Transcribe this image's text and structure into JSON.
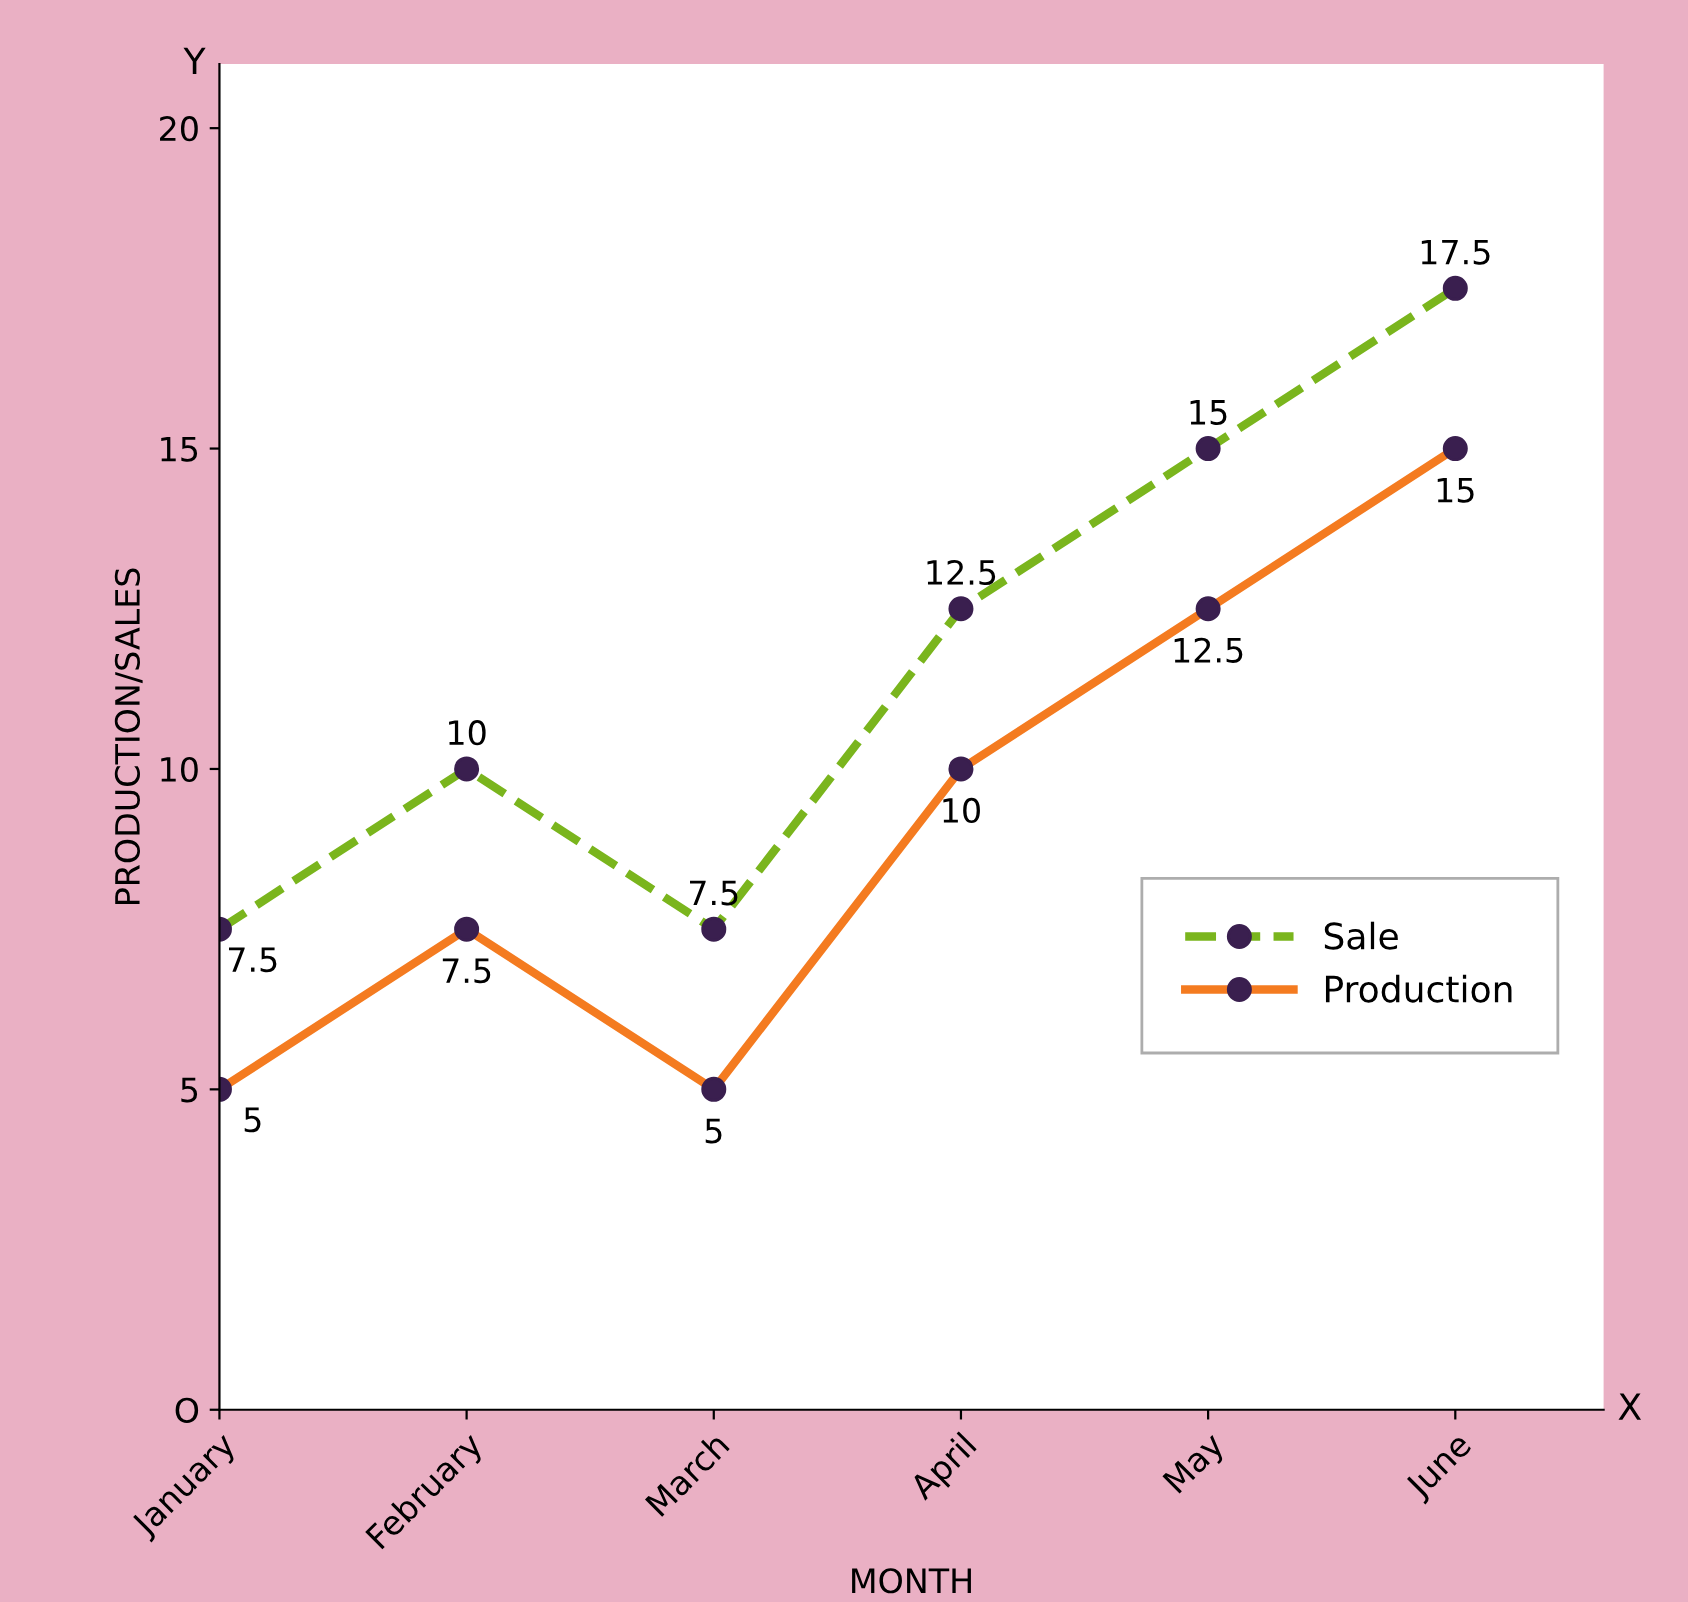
{
  "chart_data": {
    "type": "line",
    "xlabel": "MONTH",
    "ylabel": "PRODUCTION/SALES",
    "categories": [
      "January",
      "February",
      "March",
      "April",
      "May",
      "June"
    ],
    "series": [
      {
        "name": "Sale",
        "color": "#7ab51d",
        "line_style": "dashed",
        "values": [
          7.5,
          10,
          7.5,
          12.5,
          15,
          17.5
        ]
      },
      {
        "name": "Production",
        "color": "#f47b20",
        "line_style": "solid",
        "values": [
          5,
          7.5,
          5,
          10,
          12.5,
          15
        ]
      }
    ],
    "ylim": [
      0,
      21
    ],
    "yticks": [
      {
        "value": 0,
        "label": "O"
      },
      5,
      10,
      15,
      20
    ],
    "annotations": [
      "Y",
      "X"
    ],
    "marker": "circle",
    "data_labels": true,
    "legend": "right",
    "grid": false
  }
}
